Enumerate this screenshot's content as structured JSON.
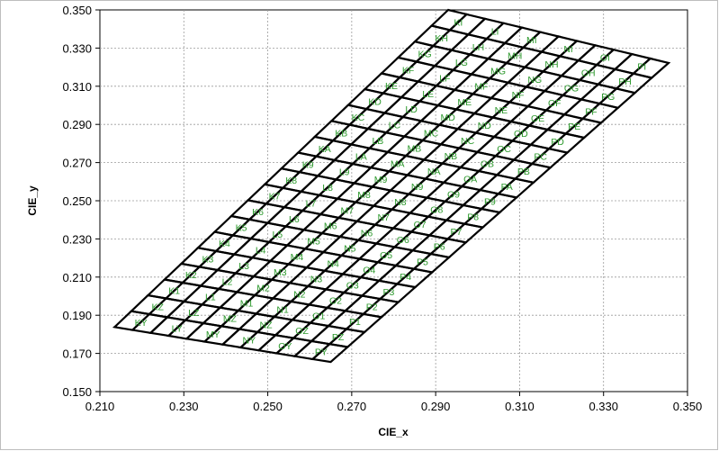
{
  "chart_data": {
    "type": "scatter",
    "xlabel": "CIE_x",
    "ylabel": "CIE_y",
    "xlim": [
      0.21,
      0.35
    ],
    "ylim": [
      0.15,
      0.35
    ],
    "xticks": [
      "0.210",
      "0.230",
      "0.250",
      "0.270",
      "0.290",
      "0.310",
      "0.330",
      "0.350"
    ],
    "yticks": [
      "0.150",
      "0.170",
      "0.190",
      "0.210",
      "0.230",
      "0.250",
      "0.270",
      "0.290",
      "0.310",
      "0.330",
      "0.350"
    ],
    "grid": true,
    "bin_grid": {
      "description": "Chromaticity bin grid; columns K..P, rows listed bottom to top",
      "columns": [
        "K",
        "L",
        "M",
        "N",
        "O",
        "P"
      ],
      "rows": [
        "Y",
        "Z",
        "1",
        "2",
        "3",
        "4",
        "5",
        "6",
        "7",
        "8",
        "9",
        "A",
        "B",
        "C",
        "D",
        "E",
        "F",
        "G",
        "H",
        "I"
      ],
      "corners": {
        "bottom_left": [
          0.2135,
          0.1838
        ],
        "bottom_right": [
          0.265,
          0.1655
        ],
        "top_left": [
          0.293,
          0.35
        ],
        "top_right": [
          0.3455,
          0.3222
        ]
      }
    }
  }
}
